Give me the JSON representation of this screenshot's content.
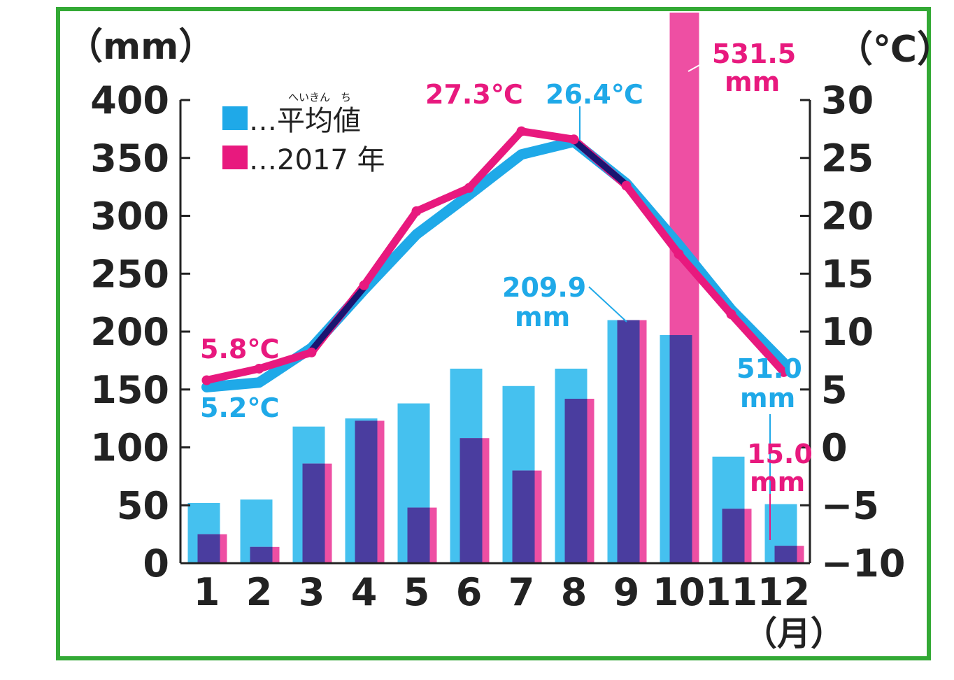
{
  "chart_data": {
    "type": "bar",
    "categories": [
      "1",
      "2",
      "3",
      "4",
      "5",
      "6",
      "7",
      "8",
      "9",
      "10",
      "11",
      "12"
    ],
    "x_unit": "（月）",
    "y_left": {
      "unit": "（mm）",
      "ticks": [
        "400",
        "350",
        "300",
        "250",
        "200",
        "150",
        "100",
        "50",
        "0"
      ],
      "range": [
        0,
        400
      ]
    },
    "y_right": {
      "unit": "（℃）",
      "ticks": [
        "30",
        "25",
        "20",
        "15",
        "10",
        "5",
        "0",
        "−5",
        "−10"
      ],
      "range": [
        -10,
        30
      ]
    },
    "precipitation_series": [
      {
        "name": "平均値",
        "color": "#45c1ef",
        "values": [
          52,
          55,
          118,
          125,
          138,
          168,
          153,
          168,
          209.9,
          197,
          92,
          51.0
        ]
      },
      {
        "name": "2017 年",
        "color": "#ee4fa3",
        "overlap_color": "#4a3d9f",
        "values": [
          25,
          14,
          86,
          123,
          48,
          108,
          80,
          142,
          209.9,
          531.5,
          47,
          15.0
        ]
      }
    ],
    "temperature_series": [
      {
        "name": "平均値",
        "color": "#1fa9e8",
        "values": [
          5.2,
          5.6,
          8.6,
          13.6,
          18.4,
          21.8,
          25.3,
          26.4,
          22.8,
          17.5,
          11.9,
          7.3
        ]
      },
      {
        "name": "2017 年",
        "color": "#e8197e",
        "values": [
          5.8,
          6.8,
          8.2,
          14.0,
          20.4,
          22.4,
          27.3,
          26.6,
          22.6,
          16.7,
          11.5,
          6.5
        ]
      }
    ],
    "overlap_line_color": "#1a1670",
    "legend": {
      "items": [
        {
          "label": "…平均値",
          "ruby": "へいきん　ち",
          "color": "#1fa9e8"
        },
        {
          "label": "…2017 年",
          "color": "#e8197e"
        }
      ]
    },
    "annotations": {
      "jan_2017_temp": "5.8℃",
      "jan_avg_temp": "5.2℃",
      "jul_2017_temp": "27.3℃",
      "aug_avg_temp": "26.4℃",
      "sep_avg_precip_value": "209.9",
      "sep_avg_precip_unit": "mm",
      "oct_2017_precip_value": "531.5",
      "oct_2017_precip_unit": "mm",
      "dec_avg_precip_value": "51.0",
      "dec_avg_precip_unit": "mm",
      "dec_2017_precip_value": "15.0",
      "dec_2017_precip_unit": "mm"
    }
  }
}
